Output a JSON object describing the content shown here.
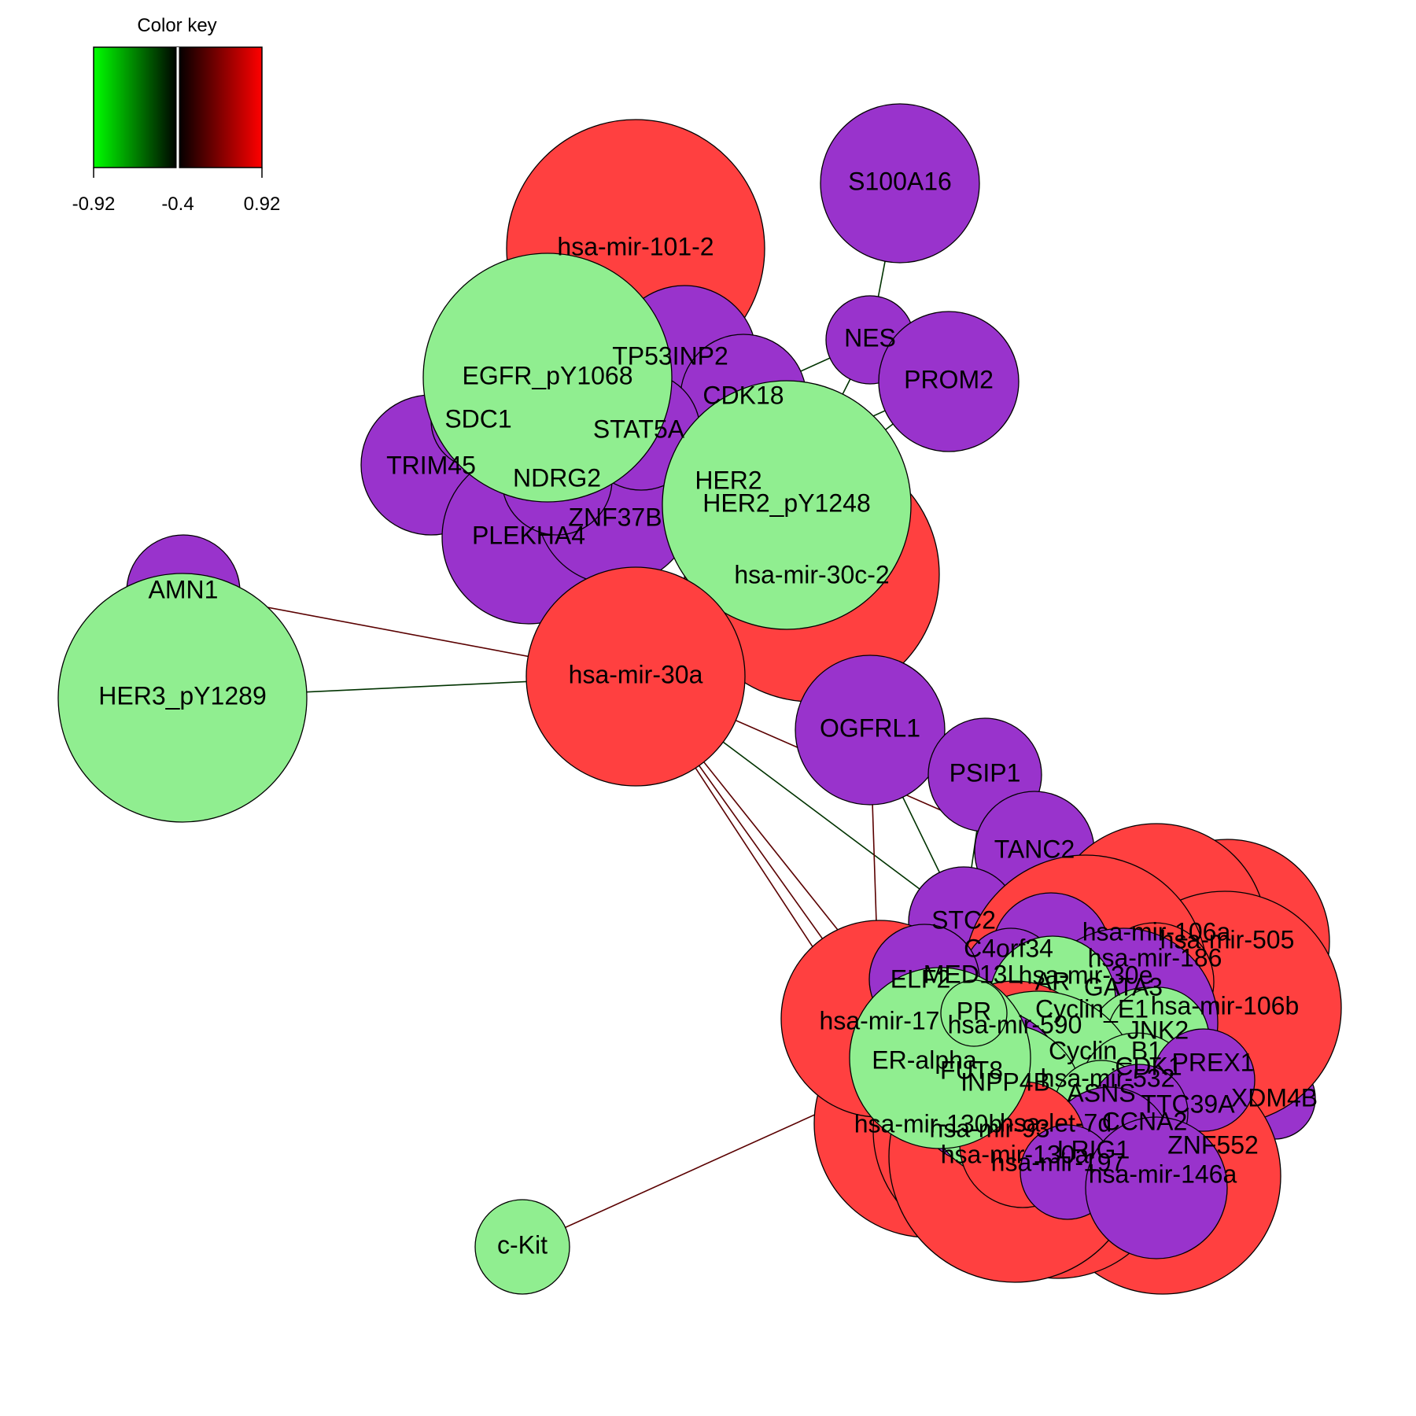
{
  "color_key": {
    "title": "Color key",
    "min_label": "-0.92",
    "mid_label": "-0.4",
    "max_label": "0.92",
    "gradient_colors": [
      "#00ff00",
      "#000000",
      "#ff0000"
    ]
  },
  "palette": {
    "mrna": "#9933cc",
    "protein": "#90ee90",
    "mirna": "#ff4040",
    "edge_positive": "#5a0000",
    "edge_negative": "#003300"
  },
  "nodes": [
    {
      "id": "mir101_2",
      "label": "hsa-mir-101-2",
      "group": "mirna"
    },
    {
      "id": "s100a16",
      "label": "S100A16",
      "group": "mrna"
    },
    {
      "id": "nes",
      "label": "NES",
      "group": "mrna"
    },
    {
      "id": "prom2",
      "label": "PROM2",
      "group": "mrna"
    },
    {
      "id": "trim45",
      "label": "TRIM45",
      "group": "mrna"
    },
    {
      "id": "plekha4",
      "label": "PLEKHA4",
      "group": "mrna"
    },
    {
      "id": "znf37b",
      "label": "ZNF37B",
      "group": "mrna"
    },
    {
      "id": "tp53inp2",
      "label": "TP53INP2",
      "group": "mrna"
    },
    {
      "id": "cdk18",
      "label": "CDK18",
      "group": "mrna"
    },
    {
      "id": "stat5a",
      "label": "STAT5A",
      "group": "mrna"
    },
    {
      "id": "ndrg2",
      "label": "NDRG2",
      "group": "mrna"
    },
    {
      "id": "sdc1",
      "label": "SDC1",
      "group": "mrna"
    },
    {
      "id": "egfr",
      "label": "EGFR_pY1068",
      "group": "protein"
    },
    {
      "id": "mir30c2",
      "label": "hsa-mir-30c-2",
      "group": "mirna"
    },
    {
      "id": "her2",
      "label": "HER2",
      "group": "protein"
    },
    {
      "id": "her2p",
      "label": "HER2_pY1248",
      "group": "protein"
    },
    {
      "id": "amn1",
      "label": "AMN1",
      "group": "mrna"
    },
    {
      "id": "her3",
      "label": "HER3_pY1289",
      "group": "protein"
    },
    {
      "id": "mir30a",
      "label": "hsa-mir-30a",
      "group": "mirna"
    },
    {
      "id": "ogfrl1",
      "label": "OGFRL1",
      "group": "mrna"
    },
    {
      "id": "psip1",
      "label": "PSIP1",
      "group": "mrna"
    },
    {
      "id": "tanc2",
      "label": "TANC2",
      "group": "mrna"
    },
    {
      "id": "stc2",
      "label": "STC2",
      "group": "mrna"
    },
    {
      "id": "xm4b",
      "label": "XDM4B",
      "group": "mrna"
    },
    {
      "id": "ckit",
      "label": "c-Kit",
      "group": "protein"
    },
    {
      "id": "mir17",
      "label": "hsa-mir-17",
      "group": "mirna"
    },
    {
      "id": "mir505",
      "label": "hsa-mir-505",
      "group": "mirna"
    },
    {
      "id": "mir106a",
      "label": "hsa-mir-106a",
      "group": "mirna"
    },
    {
      "id": "mir106b",
      "label": "hsa-mir-106b",
      "group": "mirna"
    },
    {
      "id": "mir146a",
      "label": "hsa-mir-146a",
      "group": "mirna"
    },
    {
      "id": "mir197",
      "label": "hsa-mir-197",
      "group": "mirna"
    },
    {
      "id": "mir130b",
      "label": "hsa-mir-130b",
      "group": "mirna"
    },
    {
      "id": "mir93",
      "label": "hsa-mir-93",
      "group": "mirna"
    },
    {
      "id": "mir186",
      "label": "hsa-mir-186",
      "group": "mirna"
    },
    {
      "id": "mir30e",
      "label": "hsa-mir-30e",
      "group": "mirna"
    },
    {
      "id": "mir532",
      "label": "hsa-mir-532",
      "group": "mirna"
    },
    {
      "id": "mir590",
      "label": "hsa-mir-590",
      "group": "mirna"
    },
    {
      "id": "mir130a",
      "label": "hsa-mir-130a",
      "group": "mirna"
    },
    {
      "id": "letd7",
      "label": "hsa-let-7d",
      "group": "mirna"
    },
    {
      "id": "c4orf34",
      "label": "C4orf34",
      "group": "mrna"
    },
    {
      "id": "med13l",
      "label": "MED13L",
      "group": "mrna"
    },
    {
      "id": "elf2",
      "label": "ELF2",
      "group": "mrna"
    },
    {
      "id": "ar",
      "label": "AR",
      "group": "protein"
    },
    {
      "id": "pr",
      "label": "PR",
      "group": "protein"
    },
    {
      "id": "gata3",
      "label": "GATA3",
      "group": "mrna"
    },
    {
      "id": "cyclin_e1",
      "label": "Cyclin_E1",
      "group": "protein"
    },
    {
      "id": "jnk2",
      "label": "JNK2",
      "group": "protein"
    },
    {
      "id": "cyclin_b1",
      "label": "Cyclin_B1",
      "group": "protein"
    },
    {
      "id": "cdk1",
      "label": "CDK1",
      "group": "protein"
    },
    {
      "id": "prex1",
      "label": "PREX1",
      "group": "mrna"
    },
    {
      "id": "fut8",
      "label": "FUT8",
      "group": "mrna"
    },
    {
      "id": "inpp4b",
      "label": "INPP4B",
      "group": "protein"
    },
    {
      "id": "asns",
      "label": "ASNS",
      "group": "protein"
    },
    {
      "id": "ttc39a",
      "label": "TTC39A",
      "group": "mrna"
    },
    {
      "id": "ccna2",
      "label": "CCNA2",
      "group": "mrna"
    },
    {
      "id": "lrig1",
      "label": "LRIG1",
      "group": "mrna"
    },
    {
      "id": "znf552",
      "label": "ZNF552",
      "group": "mrna"
    },
    {
      "id": "er_alpha",
      "label": "ER-alpha",
      "group": "protein"
    }
  ],
  "edges": [
    {
      "from": "s100a16",
      "to": "nes",
      "sign": "negative"
    },
    {
      "from": "nes",
      "to": "cdk18",
      "sign": "negative"
    },
    {
      "from": "nes",
      "to": "her2p",
      "sign": "negative"
    },
    {
      "from": "prom2",
      "to": "her2p",
      "sign": "negative"
    },
    {
      "from": "prom2",
      "to": "her2",
      "sign": "negative"
    },
    {
      "from": "amn1",
      "to": "mir30a",
      "sign": "positive"
    },
    {
      "from": "her3",
      "to": "mir30a",
      "sign": "negative"
    },
    {
      "from": "mir30a",
      "to": "mir17",
      "sign": "positive"
    },
    {
      "from": "mir30a",
      "to": "stc2",
      "sign": "negative"
    },
    {
      "from": "mir30a",
      "to": "er_alpha",
      "sign": "positive"
    },
    {
      "from": "mir30a",
      "to": "mir130b",
      "sign": "positive"
    },
    {
      "from": "mir30a",
      "to": "tanc2",
      "sign": "positive"
    },
    {
      "from": "ogfrl1",
      "to": "mir17",
      "sign": "positive"
    },
    {
      "from": "ogfrl1",
      "to": "stc2",
      "sign": "negative"
    },
    {
      "from": "psip1",
      "to": "stc2",
      "sign": "negative"
    },
    {
      "from": "psip1",
      "to": "c4orf34",
      "sign": "negative"
    },
    {
      "from": "ckit",
      "to": "er_alpha",
      "sign": "positive"
    }
  ]
}
